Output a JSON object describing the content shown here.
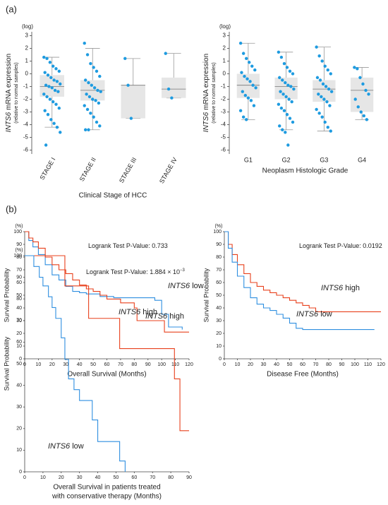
{
  "panel_labels": [
    "(a)",
    "(b)"
  ],
  "chart_data": [
    {
      "type": "box",
      "ylabel_gene": "INTS6",
      "ylabel_rest": "mRNA expression",
      "ylabel_sub": "(relative to normal samples)",
      "yunit": "(log)",
      "xlabel": "Clinical Stage of HCC",
      "ylim": [
        -6.3,
        3.3
      ],
      "yticks": [
        -6,
        -5,
        -4,
        -3,
        -2,
        -1,
        0,
        1,
        2,
        3
      ],
      "point_color": "#1e9be0",
      "box_color": "#e6e6e6",
      "xtick_rotation": -60,
      "categories": [
        "STAGE I",
        "STAGE II",
        "STAGE III",
        "STAGE IV"
      ],
      "boxes": [
        {
          "low": -4.2,
          "q1": -1.8,
          "median": -1.0,
          "q3": -0.1,
          "high": 1.3,
          "points": [
            1.3,
            1.2,
            0.9,
            0.6,
            0.4,
            0.2,
            0.1,
            -0.1,
            -0.3,
            -0.5,
            -0.6,
            -0.8,
            -0.9,
            -1.0,
            -1.1,
            -1.3,
            -1.4,
            -1.6,
            -1.8,
            -2.0,
            -2.2,
            -2.4,
            -2.7,
            -2.9,
            -3.2,
            -3.6,
            -3.9,
            -4.2,
            -4.6,
            -5.6
          ]
        },
        {
          "low": -4.4,
          "q1": -2.1,
          "median": -1.3,
          "q3": -0.5,
          "high": 2.0,
          "points": [
            2.4,
            1.5,
            0.8,
            0.5,
            0.2,
            -0.2,
            -0.5,
            -0.7,
            -0.9,
            -1.1,
            -1.3,
            -1.4,
            -1.6,
            -1.8,
            -2.0,
            -2.1,
            -2.3,
            -2.5,
            -2.8,
            -3.1,
            -3.4,
            -3.8,
            -4.1,
            -4.4,
            -4.4
          ]
        },
        {
          "low": -3.5,
          "q1": -3.5,
          "median": -0.9,
          "q3": -0.9,
          "high": 1.2,
          "points": [
            1.2,
            -0.9,
            -3.5
          ]
        },
        {
          "low": -1.9,
          "q1": -1.9,
          "median": -1.2,
          "q3": -0.3,
          "high": 1.6,
          "points": [
            1.6,
            -1.2,
            -1.9
          ]
        }
      ]
    },
    {
      "type": "box",
      "ylabel_gene": "INTS6",
      "ylabel_rest": "mRNA expression",
      "ylabel_sub": "(relative to normal samples)",
      "yunit": "(log)",
      "xlabel": "Neoplasm Histologic Grade",
      "ylim": [
        -6.3,
        3.3
      ],
      "yticks": [
        -6,
        -5,
        -4,
        -3,
        -2,
        -1,
        0,
        1,
        2,
        3
      ],
      "point_color": "#1e9be0",
      "box_color": "#e6e6e6",
      "xtick_rotation": 0,
      "categories": [
        "G1",
        "G2",
        "G3",
        "G4"
      ],
      "boxes": [
        {
          "low": -3.6,
          "q1": -1.9,
          "median": -0.9,
          "q3": 0.0,
          "high": 2.4,
          "points": [
            2.4,
            1.6,
            1.2,
            0.9,
            0.6,
            0.3,
            0.1,
            -0.2,
            -0.4,
            -0.6,
            -0.9,
            -1.1,
            -1.4,
            -1.7,
            -1.9,
            -2.1,
            -2.5,
            -2.9,
            -3.4,
            -3.6
          ]
        },
        {
          "low": -4.4,
          "q1": -2.0,
          "median": -1.0,
          "q3": -0.3,
          "high": 1.7,
          "points": [
            1.7,
            1.3,
            0.8,
            0.5,
            0.2,
            0,
            -0.3,
            -0.5,
            -0.7,
            -0.9,
            -1.0,
            -1.2,
            -1.4,
            -1.6,
            -1.8,
            -2.0,
            -2.2,
            -2.4,
            -2.7,
            -2.9,
            -3.2,
            -3.5,
            -3.8,
            -4.1,
            -4.4,
            -4.6,
            -5.6
          ]
        },
        {
          "low": -4.5,
          "q1": -2.2,
          "median": -1.2,
          "q3": -0.5,
          "high": 2.1,
          "points": [
            2.1,
            1.4,
            1.0,
            0.6,
            0.3,
            0,
            -0.3,
            -0.5,
            -0.8,
            -1.0,
            -1.2,
            -1.4,
            -1.6,
            -1.8,
            -2.0,
            -2.2,
            -2.5,
            -2.8,
            -3.1,
            -3.4,
            -3.8,
            -4.2,
            -4.5
          ]
        },
        {
          "low": -3.6,
          "q1": -3.0,
          "median": -1.3,
          "q3": -0.3,
          "high": 0.5,
          "points": [
            0.5,
            0.4,
            -0.3,
            -0.8,
            -1.3,
            -1.6,
            -2.0,
            -2.6,
            -3.0,
            -3.3,
            -3.6
          ]
        }
      ]
    },
    {
      "type": "km",
      "ylabel": "Survival Probability",
      "yunit": "(%)",
      "xlabel": "Overall Survival (Months)",
      "annotation": "Logrank Test P-Value: 0.733",
      "xlim": [
        0,
        120
      ],
      "xticks": [
        0,
        10,
        20,
        30,
        40,
        50,
        60,
        70,
        80,
        90,
        100,
        110,
        120
      ],
      "ylim": [
        0,
        100
      ],
      "yticks": [
        0,
        10,
        20,
        30,
        40,
        50,
        60,
        70,
        80,
        90,
        100
      ],
      "series": [
        {
          "gene": "INTS6",
          "name": "low",
          "color": "#2f8fe0",
          "x": [
            0,
            3,
            6,
            10,
            15,
            20,
            25,
            30,
            35,
            40,
            45,
            55,
            65,
            95,
            100,
            105,
            115
          ],
          "values": [
            100,
            93,
            88,
            82,
            74,
            66,
            62,
            57,
            53,
            52,
            51,
            49,
            48,
            46,
            35,
            25,
            23
          ]
        },
        {
          "gene": "INTS6",
          "name": "high",
          "color": "#e8401c",
          "x": [
            0,
            3,
            6,
            10,
            15,
            20,
            25,
            30,
            35,
            40,
            45,
            50,
            55,
            60,
            70,
            80,
            82,
            100,
            102,
            120
          ],
          "values": [
            100,
            95,
            92,
            87,
            80,
            74,
            70,
            67,
            62,
            58,
            55,
            53,
            50,
            47,
            44,
            40,
            30,
            30,
            21,
            21
          ]
        }
      ]
    },
    {
      "type": "km",
      "ylabel": "Survival Probability",
      "yunit": "(%)",
      "xlabel": "Disease Free (Months)",
      "annotation": "Logrank Test P-Value: 0.0192",
      "xlim": [
        0,
        120
      ],
      "xticks": [
        0,
        10,
        20,
        30,
        40,
        50,
        60,
        70,
        80,
        90,
        100,
        110,
        120
      ],
      "ylim": [
        0,
        100
      ],
      "yticks": [
        0,
        10,
        20,
        30,
        40,
        50,
        60,
        70,
        80,
        90,
        100
      ],
      "series": [
        {
          "gene": "INTS6",
          "name": "high",
          "color": "#e8401c",
          "x": [
            0,
            3,
            6,
            10,
            15,
            20,
            25,
            30,
            35,
            40,
            45,
            50,
            55,
            60,
            65,
            70,
            120
          ],
          "values": [
            100,
            90,
            82,
            74,
            67,
            60,
            57,
            54,
            52,
            50,
            48,
            46,
            44,
            42,
            40,
            37,
            37
          ]
        },
        {
          "gene": "INTS6",
          "name": "low",
          "color": "#2f8fe0",
          "x": [
            0,
            3,
            6,
            10,
            15,
            20,
            25,
            30,
            35,
            40,
            45,
            50,
            55,
            60,
            115
          ],
          "values": [
            100,
            87,
            76,
            65,
            56,
            48,
            43,
            40,
            38,
            35,
            32,
            28,
            24,
            23,
            23
          ]
        }
      ]
    },
    {
      "type": "km",
      "ylabel": "Survival Probability",
      "yunit": "(%)",
      "xlabel": [
        "Overall Survival in patients treated",
        "with conservative therapy (Months)"
      ],
      "annotation": "Logrank Test P-Value: 1.884 × 10",
      "annotation_exp": "−3",
      "xlim": [
        0,
        90
      ],
      "xticks": [
        0,
        10,
        20,
        30,
        40,
        50,
        60,
        70,
        80,
        90
      ],
      "ylim": [
        0,
        100
      ],
      "yticks": [
        0,
        10,
        20,
        30,
        40,
        50,
        60,
        70,
        80,
        90,
        100
      ],
      "series": [
        {
          "gene": "INTS6",
          "name": "high",
          "color": "#e8401c",
          "x": [
            0,
            20,
            22,
            35,
            52,
            82,
            85,
            90
          ],
          "values": [
            100,
            100,
            86,
            71,
            57,
            43,
            19,
            19
          ]
        },
        {
          "gene": "INTS6",
          "name": "low",
          "color": "#2f8fe0",
          "x": [
            0,
            5,
            8,
            10,
            13,
            15,
            17,
            20,
            22,
            24,
            27,
            30,
            37,
            40,
            52,
            55
          ],
          "values": [
            100,
            95,
            90,
            86,
            81,
            76,
            71,
            62,
            52,
            43,
            38,
            33,
            24,
            14,
            5,
            0
          ]
        }
      ]
    }
  ]
}
